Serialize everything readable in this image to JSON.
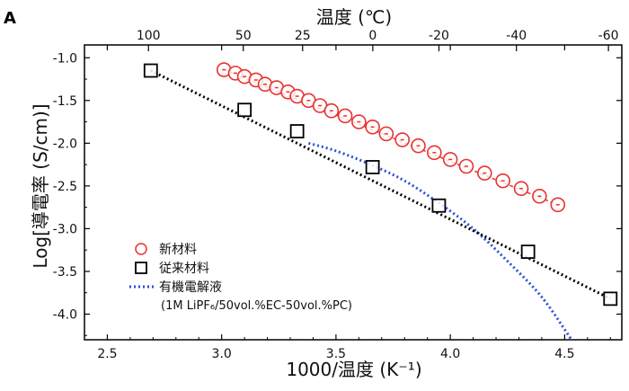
{
  "chart_data": {
    "type": "scatter",
    "panel_label": "A",
    "xlabel": "1000/温度 (K⁻¹)",
    "ylabel": "Log[導電率 (S/cm)]",
    "top_xlabel": "温度 (℃)",
    "xlim": [
      2.4,
      4.75
    ],
    "ylim": [
      -4.3,
      -0.85
    ],
    "x_ticks": [
      "2.5",
      "3.0",
      "3.5",
      "4.0",
      "4.5"
    ],
    "y_ticks": [
      "-1.0",
      "-1.5",
      "-2.0",
      "-2.5",
      "-3.0",
      "-3.5",
      "-4.0"
    ],
    "top_ticks": [
      "100",
      "50",
      "25",
      "0",
      "-20",
      "-40",
      "-60"
    ],
    "series": [
      {
        "name": "新材料",
        "marker": "circle",
        "color": "#e8322f",
        "x": [
          3.01,
          3.06,
          3.1,
          3.15,
          3.19,
          3.24,
          3.29,
          3.33,
          3.38,
          3.43,
          3.48,
          3.54,
          3.6,
          3.66,
          3.72,
          3.79,
          3.86,
          3.93,
          4.0,
          4.07,
          4.15,
          4.23,
          4.31,
          4.39,
          4.47
        ],
        "y": [
          -1.14,
          -1.18,
          -1.22,
          -1.26,
          -1.31,
          -1.35,
          -1.4,
          -1.45,
          -1.5,
          -1.56,
          -1.62,
          -1.68,
          -1.75,
          -1.81,
          -1.89,
          -1.96,
          -2.03,
          -2.11,
          -2.19,
          -2.27,
          -2.35,
          -2.44,
          -2.53,
          -2.62,
          -2.72
        ]
      },
      {
        "name": "従来材料",
        "marker": "square",
        "color": "#000000",
        "x": [
          2.69,
          3.1,
          3.33,
          3.66,
          3.95,
          4.34,
          4.7
        ],
        "y": [
          -1.15,
          -1.61,
          -1.86,
          -2.28,
          -2.73,
          -3.27,
          -3.82
        ]
      },
      {
        "name": "有機電解液",
        "subname": "(1M LiPF₆/50vol.%EC-50vol.%PC)",
        "marker": "dashed-line",
        "color": "#2b4fd9",
        "x": [
          3.38,
          3.5,
          3.66,
          3.8,
          3.95,
          4.1,
          4.25,
          4.4,
          4.53
        ],
        "y": [
          -2.0,
          -2.09,
          -2.26,
          -2.44,
          -2.7,
          -3.0,
          -3.38,
          -3.8,
          -4.3
        ]
      }
    ],
    "legend": {
      "position": "bottom-left",
      "entries": [
        "新材料",
        "従来材料",
        "有機電解液"
      ],
      "sub_entry": "(1M LiPF₆/50vol.%EC-50vol.%PC)"
    }
  }
}
